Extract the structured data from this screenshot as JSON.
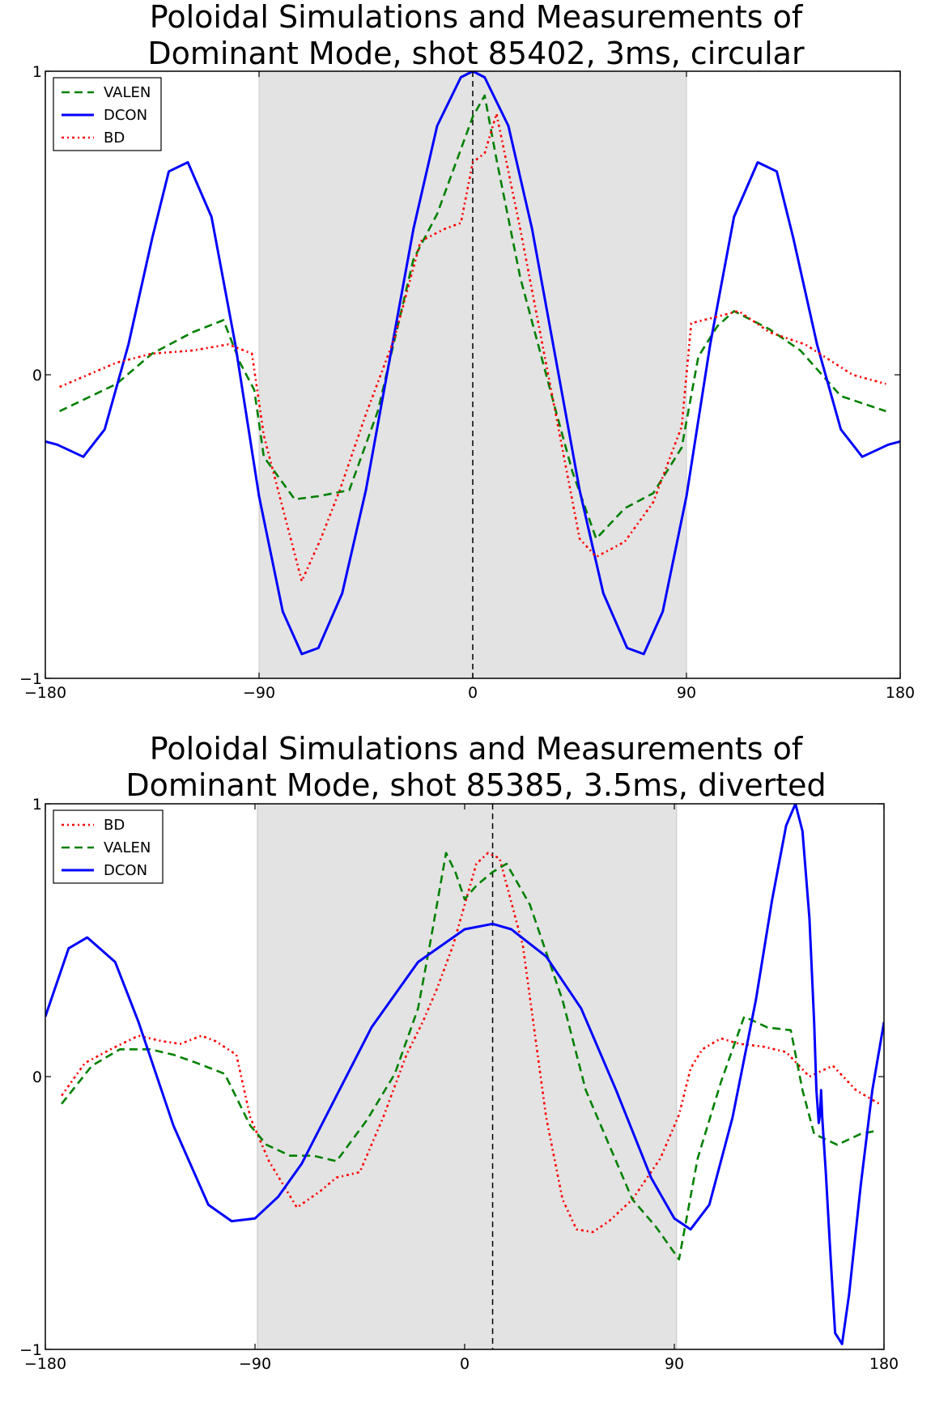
{
  "chart_data": [
    {
      "type": "line",
      "title": "Poloidal Simulations and Measurements of",
      "subtitle": "Dominant Mode, shot 85402, 3ms, circular",
      "xlabel": "",
      "ylabel": "",
      "xlim": [
        -180,
        180
      ],
      "ylim": [
        -1,
        1
      ],
      "xticks": [
        "−180",
        "−90",
        "0",
        "90",
        "180"
      ],
      "yticks": [
        "−1",
        "0",
        "1"
      ],
      "shaded_region": [
        -90,
        90
      ],
      "shade_color": "#e3e3e3",
      "vline_x": 0,
      "grid": false,
      "legend_position": "top-left",
      "legend": [
        "VALEN",
        "DCON",
        "BD"
      ],
      "series": [
        {
          "name": "VALEN",
          "color": "#008000",
          "style": "dashed",
          "x": [
            -174,
            -150,
            -135,
            -118,
            -105,
            -98,
            -92,
            -88,
            -75,
            -65,
            -52,
            -40,
            -25,
            -15,
            0,
            5,
            10,
            20,
            35,
            42,
            52,
            64,
            76,
            88,
            95,
            103,
            110,
            125,
            138,
            155,
            174
          ],
          "y": [
            -0.12,
            -0.03,
            0.07,
            0.14,
            0.18,
            0.04,
            -0.05,
            -0.27,
            -0.41,
            -0.4,
            -0.38,
            -0.12,
            0.38,
            0.53,
            0.85,
            0.92,
            0.71,
            0.32,
            -0.12,
            -0.32,
            -0.54,
            -0.44,
            -0.39,
            -0.24,
            0.06,
            0.16,
            0.21,
            0.15,
            0.08,
            -0.07,
            -0.12
          ]
        },
        {
          "name": "DCON",
          "color": "#0000ff",
          "style": "solid",
          "x": [
            -180,
            -175,
            -164,
            -155,
            -145,
            -135,
            -128,
            -120,
            -110,
            -100,
            -90,
            -80,
            -72,
            -65,
            -55,
            -45,
            -35,
            -25,
            -15,
            -5,
            0,
            5,
            15,
            25,
            35,
            45,
            55,
            65,
            72,
            80,
            90,
            100,
            110,
            120,
            128,
            135,
            145,
            155,
            164,
            175,
            180
          ],
          "y": [
            -0.22,
            -0.23,
            -0.27,
            -0.18,
            0.1,
            0.45,
            0.67,
            0.7,
            0.52,
            0.1,
            -0.4,
            -0.78,
            -0.92,
            -0.9,
            -0.72,
            -0.38,
            0.05,
            0.48,
            0.82,
            0.98,
            1.0,
            0.98,
            0.82,
            0.48,
            0.05,
            -0.38,
            -0.72,
            -0.9,
            -0.92,
            -0.78,
            -0.4,
            0.1,
            0.52,
            0.7,
            0.67,
            0.45,
            0.1,
            -0.18,
            -0.27,
            -0.23,
            -0.22
          ]
        },
        {
          "name": "BD",
          "color": "#ff0000",
          "style": "dashdot",
          "x": [
            -174,
            -150,
            -135,
            -118,
            -103,
            -93,
            -88,
            -72,
            -64,
            -56,
            -45,
            -33,
            -22,
            -12,
            -5,
            0,
            5,
            10,
            20,
            33,
            45,
            52,
            64,
            76,
            88,
            92,
            102,
            112,
            125,
            140,
            160,
            174
          ],
          "y": [
            -0.04,
            0.04,
            0.07,
            0.08,
            0.1,
            0.07,
            -0.2,
            -0.68,
            -0.54,
            -0.38,
            -0.13,
            0.12,
            0.44,
            0.48,
            0.5,
            0.7,
            0.73,
            0.86,
            0.48,
            -0.05,
            -0.54,
            -0.6,
            -0.55,
            -0.42,
            -0.17,
            0.17,
            0.19,
            0.21,
            0.14,
            0.1,
            0.0,
            -0.03
          ]
        }
      ]
    },
    {
      "type": "line",
      "title": "Poloidal Simulations and Measurements of",
      "subtitle": "Dominant Mode, shot 85385, 3.5ms, diverted",
      "xlabel": "",
      "ylabel": "",
      "xlim": [
        -180,
        180
      ],
      "ylim": [
        -1,
        1
      ],
      "xticks": [
        "−180",
        "−90",
        "0",
        "90",
        "180"
      ],
      "yticks": [
        "−1",
        "0",
        "1"
      ],
      "shaded_region": [
        -89,
        91
      ],
      "shade_color": "#e3e3e3",
      "vline_x": 12,
      "grid": false,
      "legend_position": "top-left",
      "legend": [
        "BD",
        "VALEN",
        "DCON"
      ],
      "series": [
        {
          "name": "BD",
          "color": "#ff0000",
          "style": "dashdot",
          "x": [
            -173,
            -163,
            -152,
            -140,
            -130,
            -122,
            -113,
            -107,
            -98,
            -92,
            -84,
            -72,
            -62,
            -55,
            -45,
            -35,
            -25,
            -18,
            -12,
            -5,
            0,
            5,
            10,
            15,
            25,
            35,
            42,
            48,
            55,
            62,
            72,
            84,
            92,
            97,
            102,
            110,
            118,
            128,
            138,
            148,
            158,
            168,
            178
          ],
          "y": [
            -0.07,
            0.05,
            0.1,
            0.15,
            0.13,
            0.12,
            0.15,
            0.13,
            0.08,
            -0.15,
            -0.31,
            -0.48,
            -0.42,
            -0.37,
            -0.35,
            -0.15,
            0.08,
            0.2,
            0.32,
            0.48,
            0.63,
            0.78,
            0.82,
            0.8,
            0.48,
            -0.15,
            -0.45,
            -0.56,
            -0.57,
            -0.53,
            -0.45,
            -0.3,
            -0.14,
            0.03,
            0.1,
            0.14,
            0.12,
            0.11,
            0.09,
            0.0,
            0.04,
            -0.05,
            -0.1
          ]
        },
        {
          "name": "VALEN",
          "color": "#008000",
          "style": "dashed",
          "x": [
            -173,
            -160,
            -148,
            -135,
            -125,
            -115,
            -103,
            -92,
            -85,
            -75,
            -65,
            -55,
            -42,
            -30,
            -20,
            -15,
            -8,
            -4,
            0,
            5,
            12,
            18,
            28,
            42,
            52,
            62,
            72,
            82,
            92,
            100,
            110,
            120,
            130,
            140,
            145,
            150,
            160,
            170,
            176
          ],
          "y": [
            -0.1,
            0.04,
            0.1,
            0.1,
            0.08,
            0.05,
            0.01,
            -0.18,
            -0.25,
            -0.29,
            -0.29,
            -0.31,
            -0.16,
            0.01,
            0.25,
            0.48,
            0.82,
            0.75,
            0.65,
            0.7,
            0.75,
            0.78,
            0.63,
            0.28,
            -0.05,
            -0.25,
            -0.45,
            -0.55,
            -0.67,
            -0.3,
            -0.02,
            0.22,
            0.18,
            0.17,
            -0.05,
            -0.21,
            -0.25,
            -0.21,
            -0.2
          ]
        },
        {
          "name": "DCON",
          "color": "#0000ff",
          "style": "solid",
          "x": [
            -180,
            -170,
            -162,
            -150,
            -140,
            -125,
            -110,
            -100,
            -90,
            -80,
            -70,
            -55,
            -40,
            -20,
            0,
            12,
            20,
            35,
            50,
            65,
            80,
            90,
            97,
            105,
            115,
            125,
            132,
            138,
            142,
            145,
            148,
            150,
            151,
            152,
            152.5,
            153,
            153.5,
            155,
            157,
            159,
            162,
            165,
            170,
            175,
            180
          ],
          "y": [
            0.22,
            0.47,
            0.51,
            0.42,
            0.2,
            -0.18,
            -0.47,
            -0.53,
            -0.52,
            -0.44,
            -0.32,
            -0.07,
            0.18,
            0.42,
            0.54,
            0.56,
            0.54,
            0.44,
            0.25,
            -0.05,
            -0.37,
            -0.52,
            -0.56,
            -0.47,
            -0.15,
            0.28,
            0.65,
            0.92,
            1.0,
            0.9,
            0.58,
            0.2,
            -0.05,
            -0.17,
            -0.14,
            -0.05,
            -0.15,
            -0.35,
            -0.65,
            -0.94,
            -0.98,
            -0.8,
            -0.4,
            -0.05,
            0.2
          ]
        }
      ]
    }
  ]
}
